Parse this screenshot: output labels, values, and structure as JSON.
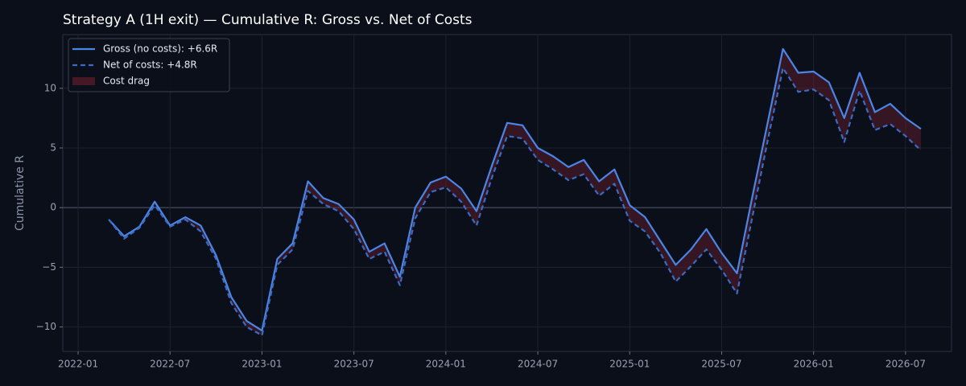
{
  "chart_data": {
    "type": "line",
    "title": "Strategy A (1H exit) — Cumulative R: Gross vs. Net of Costs",
    "y_label": "Cumulative R",
    "x": [
      "2022-03",
      "2022-04",
      "2022-05",
      "2022-06",
      "2022-07",
      "2022-08",
      "2022-09",
      "2022-10",
      "2022-11",
      "2022-12",
      "2023-01",
      "2023-02",
      "2023-03",
      "2023-04",
      "2023-05",
      "2023-06",
      "2023-07",
      "2023-08",
      "2023-09",
      "2023-10",
      "2023-11",
      "2023-12",
      "2024-01",
      "2024-02",
      "2024-03",
      "2024-04",
      "2024-05",
      "2024-06",
      "2024-07",
      "2024-08",
      "2024-09",
      "2024-10",
      "2024-11",
      "2024-12",
      "2025-01",
      "2025-02",
      "2025-03",
      "2025-04",
      "2025-05",
      "2025-06",
      "2025-07",
      "2025-08",
      "2025-09",
      "2025-10",
      "2025-11",
      "2025-12",
      "2026-01",
      "2026-02",
      "2026-03",
      "2026-04",
      "2026-05",
      "2026-06",
      "2026-07",
      "2026-08"
    ],
    "series": [
      {
        "name": "Gross (no costs): +6.6R",
        "color": "#4a86e8",
        "dash": false,
        "values": [
          -1.0,
          -2.4,
          -1.6,
          0.5,
          -1.5,
          -0.8,
          -1.5,
          -4.0,
          -7.5,
          -9.5,
          -10.3,
          -4.3,
          -3.0,
          2.2,
          0.8,
          0.3,
          -1.0,
          -3.7,
          -3.0,
          -5.8,
          0.0,
          2.1,
          2.6,
          1.6,
          -0.3,
          3.5,
          7.1,
          6.9,
          5.0,
          4.3,
          3.4,
          4.0,
          2.2,
          3.2,
          0.2,
          -0.8,
          -2.8,
          -4.8,
          -3.5,
          -1.8,
          -3.8,
          -5.5,
          0.9,
          7.1,
          13.3,
          11.3,
          11.4,
          10.5,
          7.5,
          11.3,
          8.0,
          8.7,
          7.5,
          6.6
        ]
      },
      {
        "name": "Net of costs: +4.8R",
        "color": "#3a6bc4",
        "dash": true,
        "values": [
          -1.0,
          -2.6,
          -1.7,
          0.2,
          -1.6,
          -1.0,
          -2.0,
          -4.3,
          -8.0,
          -10.0,
          -10.7,
          -4.8,
          -3.5,
          1.4,
          0.3,
          -0.3,
          -1.8,
          -4.3,
          -3.7,
          -6.5,
          -0.9,
          1.3,
          1.7,
          0.5,
          -1.5,
          2.5,
          6.0,
          5.8,
          4.0,
          3.2,
          2.3,
          2.8,
          1.0,
          2.0,
          -1.1,
          -2.0,
          -3.8,
          -6.2,
          -4.9,
          -3.5,
          -5.2,
          -7.2,
          -0.8,
          5.6,
          11.7,
          9.7,
          9.9,
          9.0,
          5.5,
          9.8,
          6.5,
          7.0,
          6.0,
          4.8
        ]
      }
    ],
    "fill_label": "Cost drag",
    "fill_color": "#6b1e2c",
    "xlim": [
      "2021-12",
      "2026-10"
    ],
    "xticks": [
      "2022-01",
      "2022-07",
      "2023-01",
      "2023-07",
      "2024-01",
      "2024-07",
      "2025-01",
      "2025-07",
      "2026-01",
      "2026-07"
    ],
    "ylim": [
      -12.05,
      14.5
    ],
    "yticks": [
      {
        "value": -10,
        "label": "−10"
      },
      {
        "value": -5,
        "label": "−5"
      },
      0,
      5,
      10
    ],
    "grid": true,
    "legend": "upper left"
  }
}
